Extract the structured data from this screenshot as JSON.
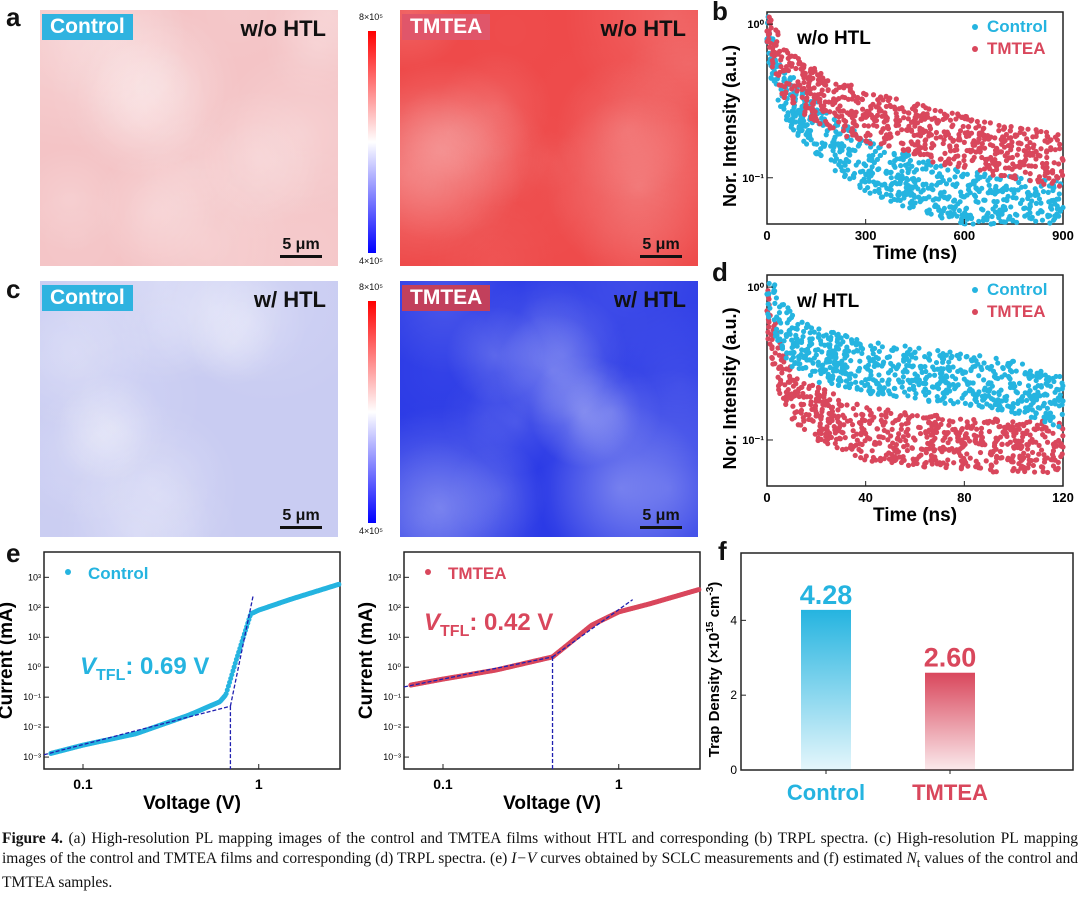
{
  "panels": {
    "a": "a",
    "b": "b",
    "c": "c",
    "d": "d",
    "e": "e",
    "f": "f"
  },
  "maps": {
    "a_control": {
      "badge": "Control",
      "condition": "w/o HTL",
      "scale": "5 μm",
      "badge_color": "#2fb3e0",
      "tone": "#f4c4c6"
    },
    "a_tmtea": {
      "badge": "TMTEA",
      "condition": "w/o HTL",
      "scale": "5 μm",
      "badge_color": "#e0566a",
      "tone": "#ee4a4a"
    },
    "c_control": {
      "badge": "Control",
      "condition": "w/ HTL",
      "scale": "5 μm",
      "badge_color": "#2fb3e0",
      "tone": "#c9ccf2"
    },
    "c_tmtea": {
      "badge": "TMTEA",
      "condition": "w/ HTL",
      "scale": "5 μm",
      "badge_color": "#c2405c",
      "tone": "#2b3ae6"
    },
    "colorbar": {
      "max": "8×10⁵",
      "min": "4×10⁵",
      "colors": [
        "#ff0000",
        "#ffffff",
        "#0000ff"
      ]
    }
  },
  "colors": {
    "control": "#25b4e0",
    "tmtea": "#d9475c",
    "fit": "#2020b0"
  },
  "chart_data": [
    {
      "id": "b",
      "type": "scatter",
      "annotation": "w/o HTL",
      "xlabel": "Time (ns)",
      "ylabel": "Nor. Intensity (a.u.)",
      "xlim": [
        0,
        900
      ],
      "ylim": [
        0.05,
        1.2
      ],
      "yscale": "log",
      "xticks": [
        "0",
        "300",
        "600",
        "900"
      ],
      "yticks": [
        "10⁰",
        "10⁻¹"
      ],
      "legend": "top-right",
      "series": [
        {
          "name": "Control",
          "points": [
            [
              0,
              0.8
            ],
            [
              50,
              0.36
            ],
            [
              100,
              0.27
            ],
            [
              200,
              0.17
            ],
            [
              300,
              0.12
            ],
            [
              400,
              0.1
            ],
            [
              500,
              0.085
            ],
            [
              600,
              0.075
            ],
            [
              700,
              0.07
            ],
            [
              800,
              0.067
            ],
            [
              900,
              0.064
            ]
          ]
        },
        {
          "name": "TMTEA",
          "points": [
            [
              0,
              0.9
            ],
            [
              50,
              0.5
            ],
            [
              100,
              0.4
            ],
            [
              200,
              0.3
            ],
            [
              300,
              0.25
            ],
            [
              400,
              0.22
            ],
            [
              500,
              0.19
            ],
            [
              600,
              0.17
            ],
            [
              700,
              0.15
            ],
            [
              800,
              0.14
            ],
            [
              900,
              0.13
            ]
          ]
        }
      ]
    },
    {
      "id": "d",
      "type": "scatter",
      "annotation": "w/ HTL",
      "xlabel": "Time (ns)",
      "ylabel": "Nor. Intensity (a.u.)",
      "xlim": [
        0,
        120
      ],
      "ylim": [
        0.05,
        1.2
      ],
      "yscale": "log",
      "xticks": [
        "0",
        "40",
        "80",
        "120"
      ],
      "yticks": [
        "10⁰",
        "10⁻¹"
      ],
      "legend": "top-right",
      "series": [
        {
          "name": "Control",
          "points": [
            [
              0,
              0.9
            ],
            [
              5,
              0.6
            ],
            [
              10,
              0.45
            ],
            [
              20,
              0.36
            ],
            [
              40,
              0.3
            ],
            [
              60,
              0.27
            ],
            [
              80,
              0.25
            ],
            [
              100,
              0.22
            ],
            [
              120,
              0.18
            ]
          ]
        },
        {
          "name": "TMTEA",
          "points": [
            [
              0,
              0.7
            ],
            [
              5,
              0.3
            ],
            [
              10,
              0.2
            ],
            [
              20,
              0.15
            ],
            [
              40,
              0.11
            ],
            [
              60,
              0.1
            ],
            [
              80,
              0.095
            ],
            [
              100,
              0.09
            ],
            [
              120,
              0.09
            ]
          ]
        }
      ]
    },
    {
      "id": "e1",
      "type": "scatter",
      "xlabel": "Voltage (V)",
      "ylabel": "Current (mA)",
      "xscale": "log",
      "yscale": "log",
      "xlim": [
        0.06,
        2.9
      ],
      "ylim": [
        0.0004,
        7000
      ],
      "xticks": [
        "0.1",
        "1"
      ],
      "yticks": [
        "10⁻³",
        "10⁻²",
        "10⁻¹",
        "10⁰",
        "10¹",
        "10²",
        "10³"
      ],
      "legend": "top-left",
      "annotation_v": "V",
      "annotation_sub": "TFL",
      "annotation_val": ": 0.69 V",
      "vtfl": 0.69,
      "series": [
        {
          "name": "Control",
          "points": [
            [
              0.065,
              0.0013
            ],
            [
              0.1,
              0.0025
            ],
            [
              0.2,
              0.006
            ],
            [
              0.4,
              0.025
            ],
            [
              0.6,
              0.07
            ],
            [
              0.65,
              0.12
            ],
            [
              0.75,
              2
            ],
            [
              0.9,
              60
            ],
            [
              1,
              80
            ],
            [
              1.5,
              180
            ],
            [
              2.9,
              600
            ]
          ]
        }
      ],
      "fits": [
        [
          [
            0.06,
            0.0012
          ],
          [
            0.69,
            0.05
          ]
        ],
        [
          [
            0.69,
            0.05
          ],
          [
            0.93,
            250
          ]
        ]
      ]
    },
    {
      "id": "e2",
      "type": "scatter",
      "xlabel": "Voltage (V)",
      "ylabel": "Current (mA)",
      "xscale": "log",
      "yscale": "log",
      "xlim": [
        0.06,
        2.9
      ],
      "ylim": [
        0.0004,
        7000
      ],
      "xticks": [
        "0.1",
        "1"
      ],
      "yticks": [
        "10⁻³",
        "10⁻²",
        "10⁻¹",
        "10⁰",
        "10¹",
        "10²",
        "10³"
      ],
      "legend": "top-left",
      "annotation_v": "V",
      "annotation_sub": "TFL",
      "annotation_val": ": 0.42 V",
      "vtfl": 0.42,
      "series": [
        {
          "name": "TMTEA",
          "points": [
            [
              0.065,
              0.25
            ],
            [
              0.1,
              0.4
            ],
            [
              0.2,
              0.8
            ],
            [
              0.42,
              2.2
            ],
            [
              0.5,
              5
            ],
            [
              0.7,
              25
            ],
            [
              1,
              70
            ],
            [
              1.5,
              130
            ],
            [
              2.9,
              400
            ]
          ]
        }
      ],
      "fits": [
        [
          [
            0.06,
            0.22
          ],
          [
            0.42,
            2.2
          ]
        ],
        [
          [
            0.42,
            2.2
          ],
          [
            1.2,
            180
          ]
        ]
      ]
    },
    {
      "id": "f",
      "type": "bar",
      "ylabel_pre": "Trap Density (×10",
      "ylabel_sup1": "15",
      "ylabel_mid": " cm",
      "ylabel_sup2": "-3",
      "ylabel_post": ")",
      "categories": [
        "Control",
        "TMTEA"
      ],
      "values": [
        4.28,
        2.6
      ],
      "labels": [
        "4.28",
        "2.60"
      ],
      "ylim": [
        0,
        5.8
      ],
      "yticks": [
        "0",
        "2",
        "4"
      ]
    }
  ],
  "caption": {
    "lead": "Figure 4.",
    "t1": " (a) High-resolution PL mapping images of the control and TMTEA films without HTL and corresponding (b) TRPL spectra. (c) High-resolution PL mapping images of the control and TMTEA films and corresponding (d) TRPL spectra. (e) ",
    "iv": "I−V",
    "t2": " curves obtained by SCLC measurements and (f) estimated ",
    "nt": "N",
    "nt_sub": "t",
    "t3": " values of the control and TMTEA samples."
  }
}
